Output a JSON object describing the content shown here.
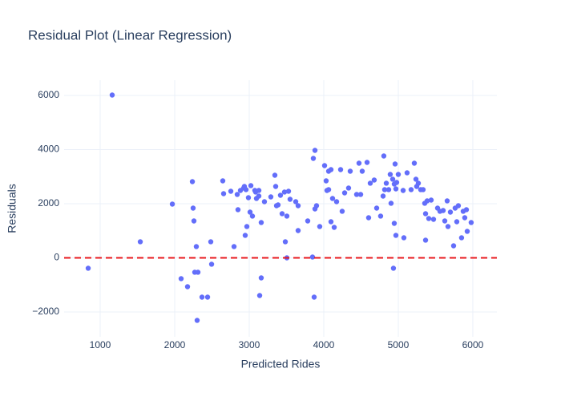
{
  "chart_data": {
    "type": "scatter",
    "title": "Residual Plot (Linear Regression)",
    "x_label": "Predicted Rides",
    "y_label": "Residuals",
    "xlim": [
      516,
      6323
    ],
    "ylim": [
      -2919,
      6563
    ],
    "xticks": [
      1000,
      2000,
      3000,
      4000,
      5000,
      6000
    ],
    "yticks": [
      {
        "value": -2000,
        "label": "−2000"
      },
      0,
      2000,
      4000,
      6000
    ],
    "grid": true,
    "reference_line": {
      "y": 0,
      "color": "#e8181e"
    },
    "series": [
      {
        "color": "#636efa",
        "x": [
          839,
          1161,
          1538,
          1968,
          2086,
          2172,
          2237,
          2247,
          2258,
          2290,
          2269,
          2312,
          2301,
          2366,
          2441,
          2484,
          2495,
          2645,
          2656,
          2753,
          2796,
          2839,
          2849,
          2882,
          2925,
          2935,
          2957,
          2946,
          2968,
          2989,
          3011,
          3022,
          3043,
          3075,
          3086,
          3097,
          3129,
          3129,
          3161,
          3140,
          3161,
          3204,
          3290,
          3344,
          3355,
          3366,
          3387,
          3419,
          3441,
          3473,
          3484,
          3505,
          3505,
          3527,
          3548,
          3624,
          3656,
          3656,
          3785,
          3860,
          3882,
          3903,
          3882,
          3849,
          3871,
          3946,
          4011,
          4032,
          4043,
          4065,
          4065,
          4097,
          4118,
          4097,
          4140,
          4172,
          4226,
          4247,
          4280,
          4333,
          4355,
          4441,
          4473,
          4495,
          4516,
          4581,
          4602,
          4624,
          4677,
          4710,
          4763,
          4796,
          4806,
          4817,
          4839,
          4871,
          4892,
          4903,
          4925,
          4935,
          4946,
          4946,
          4957,
          4968,
          4968,
          4978,
          5000,
          5065,
          5075,
          5118,
          5172,
          5215,
          5237,
          5247,
          5269,
          5301,
          5333,
          5355,
          5366,
          5366,
          5387,
          5409,
          5441,
          5473,
          5527,
          5559,
          5602,
          5624,
          5656,
          5667,
          5699,
          5742,
          5763,
          5785,
          5806,
          5849,
          5871,
          5892,
          5914,
          5925,
          5978
        ],
        "values": [
          -385,
          6015,
          593,
          1985,
          -770,
          -1067,
          2815,
          1837,
          1363,
          415,
          -533,
          -533,
          -2311,
          -1452,
          -1452,
          593,
          -237,
          2844,
          2370,
          2459,
          415,
          2341,
          1778,
          2489,
          2578,
          2637,
          2519,
          830,
          1156,
          2222,
          1689,
          2667,
          1541,
          2489,
          2430,
          2193,
          2489,
          2281,
          -741,
          -1393,
          1304,
          2074,
          2252,
          3052,
          2637,
          1926,
          1956,
          2311,
          1630,
          2430,
          593,
          1541,
          0,
          2459,
          2163,
          2074,
          1007,
          1926,
          1363,
          3674,
          3970,
          1926,
          1807,
          30,
          -1452,
          1156,
          3407,
          2844,
          2489,
          2519,
          3200,
          3259,
          2193,
          1333,
          1126,
          2074,
          3259,
          1719,
          2400,
          2578,
          3200,
          2341,
          3496,
          2341,
          3200,
          3526,
          1481,
          2756,
          2874,
          1837,
          1541,
          2281,
          3763,
          2519,
          2756,
          2519,
          3081,
          2015,
          2904,
          -385,
          1274,
          2726,
          3467,
          830,
          2548,
          2785,
          3081,
          2489,
          741,
          3141,
          2519,
          3496,
          2904,
          2637,
          2756,
          2519,
          2519,
          2015,
          1630,
          652,
          2104,
          1452,
          2133,
          1422,
          1837,
          1719,
          1748,
          1363,
          2104,
          1156,
          1689,
          444,
          1837,
          1333,
          1926,
          741,
          1719,
          1481,
          1778,
          978,
          1304
        ]
      }
    ]
  }
}
